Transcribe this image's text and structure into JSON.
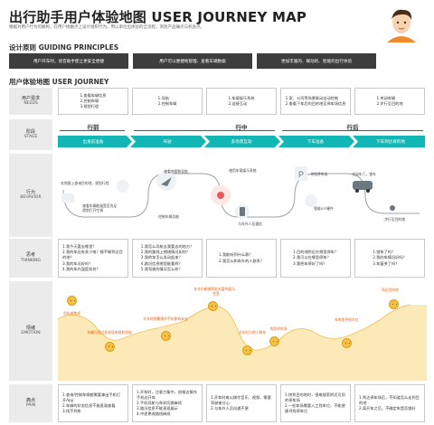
{
  "header": {
    "title": "出行助手用户体验地图 USER JOURNEY MAP",
    "description": "根据对用户行为的解构，在用户接触点上设计组织行为。用以串位出体验的全流程，洞悉产品痛点与机会点。"
  },
  "principles": {
    "heading": "设计原则 GUIDING PRINCIPLES",
    "items": [
      "用户开车时，语音助手使之更安全便捷",
      "用户可以便捷地管理、查看车辆数据",
      "更加丰富的、联动的、智能的出行体验"
    ]
  },
  "journey": {
    "heading": "用户体验地图 USER JOURNEY",
    "rows": {
      "needs": {
        "cn": "用户需求",
        "en": "NEEDS"
      },
      "stage": {
        "cn": "阶段",
        "en": "STAGE"
      },
      "behavior": {
        "cn": "行为",
        "en": "BEHAVIOR"
      },
      "thinking": {
        "cn": "思考",
        "en": "THINKING"
      },
      "emotion": {
        "cn": "情绪",
        "en": "EMOTION"
      },
      "pain": {
        "cn": "痛点",
        "en": "PAIN"
      }
    },
    "needs": [
      [
        "1.查看车辆信息",
        "2.控制车辆",
        "3.规划行程"
      ],
      [
        "1.导航",
        "2.控制车辆"
      ],
      [
        "1.车载娱乐系统",
        "2.连接互动"
      ],
      [
        "1.家、公司等场景联动自动控制",
        "2.查看下车后的目的地至停车场信息"
      ],
      [
        "1.关闭车辆",
        "2.步行至目的地"
      ]
    ],
    "phases": [
      "行前",
      "行中",
      "行后"
    ],
    "stages": [
      "出发前准备",
      "驾驶",
      "多场景互动",
      "下车准备",
      "下车到达目的地"
    ],
    "behavior": {
      "notes": [
        "·在地图上查询目的地，规划行程",
        "·查看车辆能量是否充足",
        "·提前打开空调",
        "·查看地图和导航",
        "·控制车辆功能",
        "·使用车载娱乐系统",
        "·与车外人员通信",
        "·寻找停车场",
        "·智能IOT硬件",
        "·关闭车门，锁车",
        "·步行至目的地"
      ]
    },
    "thinking": [
      [
        "1.我今天要去哪里？",
        "2.我的车还有多少电？够不够到达目的地？",
        "3.我的车况好吗？",
        "4.我的车内温度如何？"
      ],
      [
        "1.我怎么导航去我要去的地方？",
        "2.我的路线上拥堵情况如何？",
        "3.我的车怎么发动起来？",
        "4.路况信息哪里能看到？",
        "5.我驾驶的情况怎么样？"
      ],
      [
        "1.我能听到什么歌？",
        "2.我怎么和车外的人联系？"
      ],
      [
        "1.目的地附近在哪里停车？",
        "2.我可以在哪里停车？",
        "3.我把车停好了吗？"
      ],
      [
        "1.锁车了吗？",
        "2.我的车情况好吗？",
        "3.车窗关了吗？"
      ]
    ],
    "emotion": {
      "labels": [
        "用车前焦虑",
        "车辆行程过多易导致规划烦恼",
        "开车时频繁操作手机影响安全",
        "在车内能够获取丰富的娱乐、信息",
        "开车时与他人联系",
        "找到停车场",
        "车库里寻找车位",
        "到达目的地"
      ]
    },
    "pain": [
      [
        "1.查询/控制车辆都需要拿出手机打开App",
        "2.车辆的状态信息不能直观查看",
        "3.找不到车"
      ],
      [
        "1.开车时，注意力集中，很难边操作手机边开车",
        "2.手机导航与车机切换麻烦",
        "3.路况信息不能直观展示",
        "4.中途更改路线麻烦"
      ],
      [
        "1.开车时难以操作音乐、视频，需要驾驶者分心",
        "2.与车外人员沟通不便"
      ],
      [
        "1.快到目的地时，很难搜索附近可用的停车场",
        "2.一些车场需要人工找车位，不能便捷寻找停车位"
      ],
      [
        "1.到达停车场后，不知道怎么走到目的地",
        "2.离开车之后，不确定车是否锁好"
      ]
    ]
  },
  "colors": {
    "accent": "#12b6b4",
    "header_dark": "#3d3d3d",
    "emotion_fill": "#fbe9b8",
    "emotion_label": "#e0651a"
  }
}
